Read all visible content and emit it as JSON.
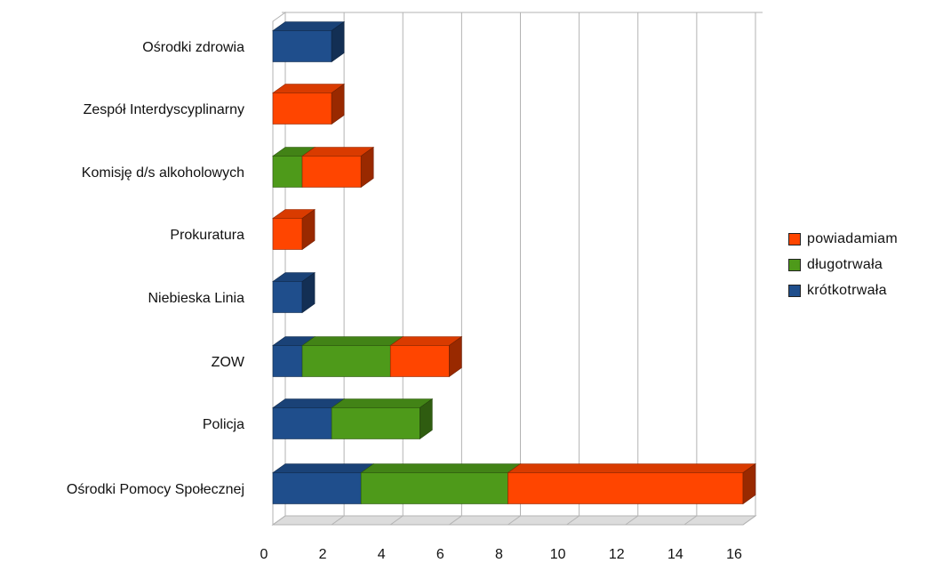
{
  "chart_data": {
    "type": "bar",
    "orientation": "horizontal",
    "stacked": true,
    "style": "3d",
    "categories": [
      "Ośrodki zdrowia",
      "Zespół Interdyscyplinarny",
      "Komisję d/s alkoholowych",
      "Prokuratura",
      "Niebieska Linia",
      "ZOW",
      "Policja",
      "Ośrodki Pomocy Społecznej"
    ],
    "series": [
      {
        "name": "krótkotrwała",
        "color": "#1f4e8c",
        "values": [
          2,
          0,
          0,
          0,
          1,
          1,
          2,
          3
        ]
      },
      {
        "name": "długotrwała",
        "color": "#4e9a1a",
        "values": [
          0,
          0,
          1,
          0,
          0,
          3,
          3,
          5
        ]
      },
      {
        "name": "powiadamiam",
        "color": "#ff4500",
        "values": [
          0,
          2,
          2,
          1,
          0,
          2,
          0,
          8
        ]
      }
    ],
    "legend_order": [
      "powiadamiam",
      "długotrwała",
      "krótkotrwała"
    ],
    "xlim": [
      0,
      16
    ],
    "x_ticks": [
      0,
      2,
      4,
      6,
      8,
      10,
      12,
      14,
      16
    ],
    "grid": true,
    "legend_position": "right",
    "title": "",
    "xlabel": "",
    "ylabel": ""
  }
}
